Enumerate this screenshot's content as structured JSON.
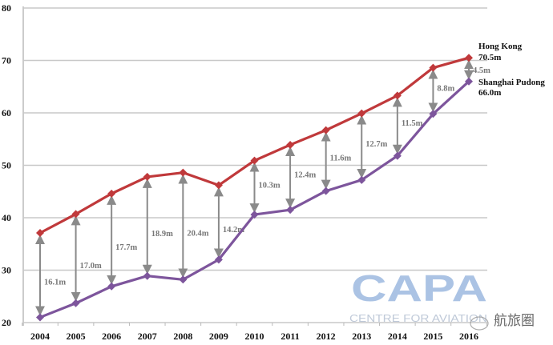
{
  "chart_data": {
    "type": "line",
    "title": "",
    "xlabel": "",
    "ylabel": "",
    "ylim": [
      20,
      80
    ],
    "yticks": [
      "20",
      "30",
      "40",
      "50",
      "60",
      "70",
      "80"
    ],
    "categories": [
      "2004",
      "2005",
      "2006",
      "2007",
      "2008",
      "2009",
      "2010",
      "2011",
      "2012",
      "2013",
      "2014",
      "2015",
      "2016"
    ],
    "grid": true,
    "series": [
      {
        "name": "Hong Kong",
        "end_label": "70.5m",
        "color": "#c0393b",
        "values": [
          37.1,
          40.7,
          44.6,
          47.8,
          48.6,
          46.2,
          50.9,
          53.9,
          56.7,
          59.9,
          63.3,
          68.6,
          70.5
        ]
      },
      {
        "name": "Shanghai Pudong",
        "end_label": "66.0m",
        "color": "#7d559c",
        "values": [
          21.0,
          23.7,
          26.9,
          28.9,
          28.2,
          32.0,
          40.6,
          41.5,
          45.1,
          47.2,
          51.8,
          59.8,
          66.0
        ]
      }
    ],
    "gap_labels": [
      "16.1m",
      "17.0m",
      "17.7m",
      "18.9m",
      "20.4m",
      "14.2m",
      "10.3m",
      "12.4m",
      "11.6m",
      "12.7m",
      "11.5m",
      "8.8m",
      "4.5m"
    ]
  },
  "watermark": {
    "logo": "CAPA",
    "tagline": "CENTRE FOR AVIATION",
    "weibo": "航旅圈"
  }
}
